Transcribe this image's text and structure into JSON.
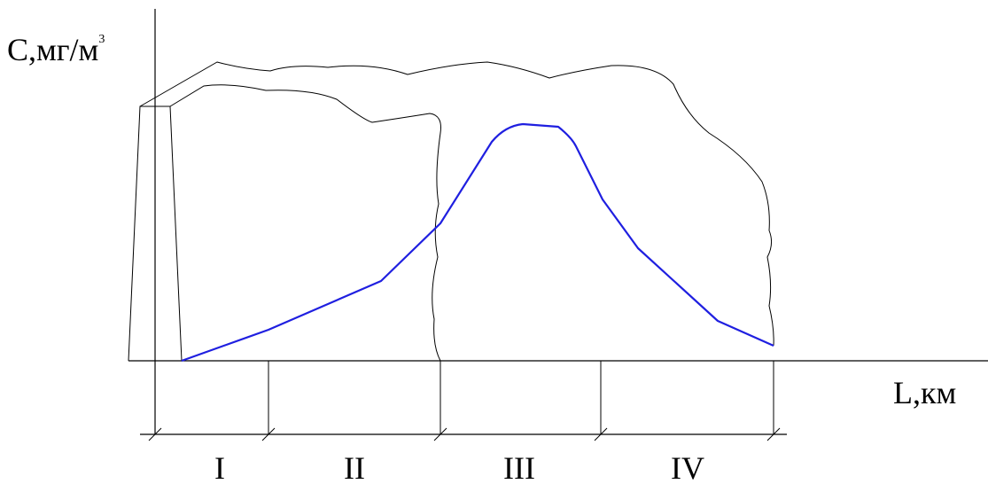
{
  "y_axis_label": {
    "text": "С,мг/м",
    "superscript": "3"
  },
  "x_axis_label": "L,км",
  "zones": [
    "I",
    "II",
    "III",
    "IV"
  ]
}
